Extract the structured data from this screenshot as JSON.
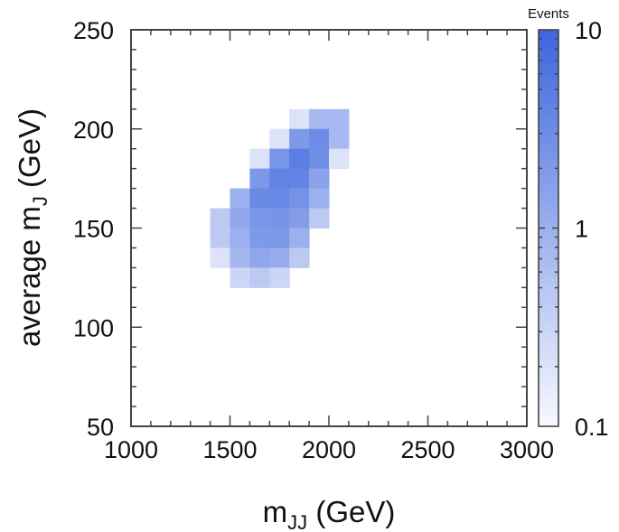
{
  "chart_data": {
    "type": "heatmap",
    "title": "",
    "xlabel": "m_JJ (GeV)",
    "xlabel_main": "m",
    "xlabel_sub": "JJ",
    "xlabel_tail": " (GeV)",
    "ylabel": "average m_J (GeV)",
    "ylabel_main": "average m",
    "ylabel_sub": "J",
    "ylabel_tail": " (GeV)",
    "xlim": [
      1000,
      3000
    ],
    "ylim": [
      50,
      250
    ],
    "xticks": [
      1000,
      1500,
      2000,
      2500,
      3000
    ],
    "yticks": [
      50,
      100,
      150,
      200,
      250
    ],
    "x_minor_step": 100,
    "y_minor_step": 10,
    "bin_width_x": 100,
    "bin_width_y": 10,
    "grid": false,
    "colorbar": {
      "title": "Events",
      "scale": "log",
      "range": [
        0.1,
        10
      ],
      "ticks": [
        0.1,
        1,
        10
      ],
      "tick_labels": [
        "0.1",
        "1",
        "10"
      ],
      "color_low": "#f8f9fe",
      "color_high": "#3d66dd"
    },
    "cells": [
      {
        "x0": 1800,
        "y0": 200,
        "value": 0.2
      },
      {
        "x0": 1900,
        "y0": 200,
        "value": 0.75
      },
      {
        "x0": 2000,
        "y0": 200,
        "value": 0.75
      },
      {
        "x0": 1700,
        "y0": 190,
        "value": 0.2
      },
      {
        "x0": 1800,
        "y0": 190,
        "value": 2.0
      },
      {
        "x0": 1900,
        "y0": 190,
        "value": 3.0
      },
      {
        "x0": 2000,
        "y0": 190,
        "value": 0.75
      },
      {
        "x0": 1600,
        "y0": 180,
        "value": 0.2
      },
      {
        "x0": 1700,
        "y0": 180,
        "value": 2.3
      },
      {
        "x0": 1800,
        "y0": 180,
        "value": 4.5
      },
      {
        "x0": 1900,
        "y0": 180,
        "value": 2.9
      },
      {
        "x0": 2000,
        "y0": 180,
        "value": 0.2
      },
      {
        "x0": 1600,
        "y0": 170,
        "value": 2.1
      },
      {
        "x0": 1700,
        "y0": 170,
        "value": 4.0
      },
      {
        "x0": 1800,
        "y0": 170,
        "value": 3.8
      },
      {
        "x0": 1900,
        "y0": 170,
        "value": 1.5
      },
      {
        "x0": 1500,
        "y0": 160,
        "value": 1.0
      },
      {
        "x0": 1600,
        "y0": 160,
        "value": 3.2
      },
      {
        "x0": 1700,
        "y0": 160,
        "value": 3.5
      },
      {
        "x0": 1800,
        "y0": 160,
        "value": 2.5
      },
      {
        "x0": 1900,
        "y0": 160,
        "value": 1.0
      },
      {
        "x0": 1400,
        "y0": 150,
        "value": 0.45
      },
      {
        "x0": 1500,
        "y0": 150,
        "value": 1.3
      },
      {
        "x0": 1600,
        "y0": 150,
        "value": 2.2
      },
      {
        "x0": 1700,
        "y0": 150,
        "value": 2.4
      },
      {
        "x0": 1800,
        "y0": 150,
        "value": 1.8
      },
      {
        "x0": 1900,
        "y0": 150,
        "value": 0.45
      },
      {
        "x0": 1400,
        "y0": 140,
        "value": 0.45
      },
      {
        "x0": 1500,
        "y0": 140,
        "value": 1.0
      },
      {
        "x0": 1600,
        "y0": 140,
        "value": 2.0
      },
      {
        "x0": 1700,
        "y0": 140,
        "value": 2.1
      },
      {
        "x0": 1800,
        "y0": 140,
        "value": 1.0
      },
      {
        "x0": 1400,
        "y0": 130,
        "value": 0.2
      },
      {
        "x0": 1500,
        "y0": 130,
        "value": 0.8
      },
      {
        "x0": 1600,
        "y0": 130,
        "value": 1.3
      },
      {
        "x0": 1700,
        "y0": 130,
        "value": 1.1
      },
      {
        "x0": 1800,
        "y0": 130,
        "value": 0.45
      },
      {
        "x0": 1500,
        "y0": 120,
        "value": 0.3
      },
      {
        "x0": 1600,
        "y0": 120,
        "value": 0.45
      },
      {
        "x0": 1700,
        "y0": 120,
        "value": 0.3
      }
    ]
  }
}
